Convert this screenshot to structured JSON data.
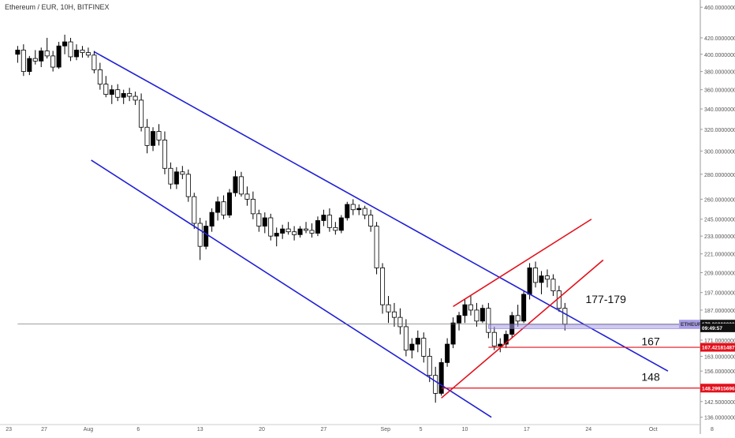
{
  "chart_data": {
    "type": "candlestick",
    "title": "Ethereum / EUR, 10H, BITFINEX",
    "y_axis": {
      "ticks": [
        460,
        420,
        400,
        380,
        360,
        340,
        320,
        300,
        280,
        260,
        245,
        233,
        221,
        209,
        197,
        187,
        171,
        163,
        156,
        148.5,
        142.5,
        136
      ],
      "tick_labels": [
        "460.00000000",
        "420.00000000",
        "400.00000000",
        "380.00000000",
        "360.00000000",
        "340.00000000",
        "320.00000000",
        "300.00000000",
        "280.00000000",
        "260.00000000",
        "245.00000000",
        "233.00000000",
        "221.00000000",
        "209.00000000",
        "197.00000000",
        "187.00000000",
        "171.00000000",
        "163.00000000",
        "156.00000000",
        "148.50000000",
        "142.50000000",
        "136.00000000"
      ],
      "scale": "log",
      "range": [
        134,
        470
      ],
      "position": "right"
    },
    "x_axis": {
      "ticks": [
        "23",
        "27",
        "Aug",
        "6",
        "13",
        "20",
        "27",
        "Sep",
        "5",
        "10",
        "17",
        "24",
        "Oct",
        "8"
      ],
      "range": [
        "Jul 20",
        "Oct 9"
      ]
    },
    "series": [
      {
        "kind": "candles",
        "points": [
          {
            "x": 0,
            "o": 400,
            "h": 410,
            "l": 390,
            "c": 405
          },
          {
            "x": 2,
            "o": 405,
            "h": 412,
            "l": 375,
            "c": 380
          },
          {
            "x": 4,
            "o": 380,
            "h": 398,
            "l": 376,
            "c": 395
          },
          {
            "x": 6,
            "o": 395,
            "h": 405,
            "l": 388,
            "c": 392
          },
          {
            "x": 8,
            "o": 392,
            "h": 408,
            "l": 385,
            "c": 404
          },
          {
            "x": 10,
            "o": 404,
            "h": 420,
            "l": 395,
            "c": 398
          },
          {
            "x": 12,
            "o": 398,
            "h": 404,
            "l": 380,
            "c": 385
          },
          {
            "x": 14,
            "o": 385,
            "h": 415,
            "l": 383,
            "c": 410
          },
          {
            "x": 16,
            "o": 410,
            "h": 424,
            "l": 400,
            "c": 415
          },
          {
            "x": 18,
            "o": 415,
            "h": 420,
            "l": 392,
            "c": 397
          },
          {
            "x": 20,
            "o": 397,
            "h": 412,
            "l": 393,
            "c": 405
          },
          {
            "x": 22,
            "o": 405,
            "h": 410,
            "l": 396,
            "c": 402
          },
          {
            "x": 24,
            "o": 402,
            "h": 408,
            "l": 396,
            "c": 399
          },
          {
            "x": 26,
            "o": 399,
            "h": 404,
            "l": 378,
            "c": 382
          },
          {
            "x": 28,
            "o": 382,
            "h": 390,
            "l": 360,
            "c": 366
          },
          {
            "x": 30,
            "o": 366,
            "h": 375,
            "l": 352,
            "c": 355
          },
          {
            "x": 32,
            "o": 355,
            "h": 365,
            "l": 345,
            "c": 360
          },
          {
            "x": 34,
            "o": 360,
            "h": 366,
            "l": 348,
            "c": 352
          },
          {
            "x": 36,
            "o": 352,
            "h": 360,
            "l": 345,
            "c": 356
          },
          {
            "x": 38,
            "o": 356,
            "h": 362,
            "l": 348,
            "c": 353
          },
          {
            "x": 40,
            "o": 353,
            "h": 358,
            "l": 344,
            "c": 349
          },
          {
            "x": 42,
            "o": 349,
            "h": 356,
            "l": 318,
            "c": 322
          },
          {
            "x": 44,
            "o": 322,
            "h": 330,
            "l": 298,
            "c": 305
          },
          {
            "x": 46,
            "o": 305,
            "h": 322,
            "l": 300,
            "c": 318
          },
          {
            "x": 48,
            "o": 318,
            "h": 325,
            "l": 305,
            "c": 310
          },
          {
            "x": 50,
            "o": 310,
            "h": 318,
            "l": 280,
            "c": 285
          },
          {
            "x": 52,
            "o": 285,
            "h": 290,
            "l": 268,
            "c": 272
          },
          {
            "x": 54,
            "o": 272,
            "h": 286,
            "l": 268,
            "c": 282
          },
          {
            "x": 56,
            "o": 282,
            "h": 287,
            "l": 276,
            "c": 280
          },
          {
            "x": 58,
            "o": 280,
            "h": 284,
            "l": 258,
            "c": 262
          },
          {
            "x": 60,
            "o": 262,
            "h": 265,
            "l": 238,
            "c": 242
          },
          {
            "x": 62,
            "o": 242,
            "h": 246,
            "l": 217,
            "c": 226
          },
          {
            "x": 64,
            "o": 226,
            "h": 244,
            "l": 224,
            "c": 240
          },
          {
            "x": 66,
            "o": 240,
            "h": 253,
            "l": 236,
            "c": 250
          },
          {
            "x": 68,
            "o": 250,
            "h": 262,
            "l": 244,
            "c": 258
          },
          {
            "x": 70,
            "o": 258,
            "h": 263,
            "l": 245,
            "c": 248
          },
          {
            "x": 72,
            "o": 248,
            "h": 268,
            "l": 246,
            "c": 265
          },
          {
            "x": 74,
            "o": 265,
            "h": 283,
            "l": 262,
            "c": 278
          },
          {
            "x": 76,
            "o": 278,
            "h": 282,
            "l": 262,
            "c": 264
          },
          {
            "x": 78,
            "o": 264,
            "h": 270,
            "l": 255,
            "c": 260
          },
          {
            "x": 80,
            "o": 260,
            "h": 266,
            "l": 245,
            "c": 249
          },
          {
            "x": 82,
            "o": 249,
            "h": 252,
            "l": 236,
            "c": 240
          },
          {
            "x": 84,
            "o": 240,
            "h": 250,
            "l": 235,
            "c": 246
          },
          {
            "x": 86,
            "o": 246,
            "h": 249,
            "l": 230,
            "c": 233
          },
          {
            "x": 88,
            "o": 233,
            "h": 239,
            "l": 226,
            "c": 235
          },
          {
            "x": 90,
            "o": 235,
            "h": 241,
            "l": 231,
            "c": 238
          },
          {
            "x": 92,
            "o": 238,
            "h": 243,
            "l": 234,
            "c": 236
          },
          {
            "x": 94,
            "o": 236,
            "h": 240,
            "l": 230,
            "c": 234
          },
          {
            "x": 96,
            "o": 234,
            "h": 240,
            "l": 232,
            "c": 238
          },
          {
            "x": 98,
            "o": 238,
            "h": 243,
            "l": 235,
            "c": 237
          },
          {
            "x": 100,
            "o": 237,
            "h": 242,
            "l": 232,
            "c": 235
          },
          {
            "x": 102,
            "o": 235,
            "h": 247,
            "l": 233,
            "c": 244
          },
          {
            "x": 104,
            "o": 244,
            "h": 252,
            "l": 240,
            "c": 248
          },
          {
            "x": 106,
            "o": 248,
            "h": 253,
            "l": 236,
            "c": 239
          },
          {
            "x": 108,
            "o": 239,
            "h": 243,
            "l": 234,
            "c": 237
          },
          {
            "x": 110,
            "o": 237,
            "h": 248,
            "l": 235,
            "c": 246
          },
          {
            "x": 112,
            "o": 246,
            "h": 258,
            "l": 244,
            "c": 256
          },
          {
            "x": 114,
            "o": 256,
            "h": 260,
            "l": 248,
            "c": 252
          },
          {
            "x": 116,
            "o": 252,
            "h": 256,
            "l": 248,
            "c": 253
          },
          {
            "x": 118,
            "o": 253,
            "h": 255,
            "l": 245,
            "c": 248
          },
          {
            "x": 120,
            "o": 248,
            "h": 252,
            "l": 236,
            "c": 240
          },
          {
            "x": 122,
            "o": 240,
            "h": 243,
            "l": 208,
            "c": 212
          },
          {
            "x": 124,
            "o": 212,
            "h": 215,
            "l": 185,
            "c": 190
          },
          {
            "x": 126,
            "o": 190,
            "h": 195,
            "l": 180,
            "c": 186
          },
          {
            "x": 128,
            "o": 186,
            "h": 191,
            "l": 178,
            "c": 183
          },
          {
            "x": 130,
            "o": 183,
            "h": 188,
            "l": 174,
            "c": 178
          },
          {
            "x": 132,
            "o": 178,
            "h": 182,
            "l": 163,
            "c": 166
          },
          {
            "x": 134,
            "o": 166,
            "h": 172,
            "l": 162,
            "c": 169
          },
          {
            "x": 136,
            "o": 169,
            "h": 176,
            "l": 165,
            "c": 172
          },
          {
            "x": 138,
            "o": 172,
            "h": 175,
            "l": 160,
            "c": 163
          },
          {
            "x": 140,
            "o": 163,
            "h": 167,
            "l": 151,
            "c": 154
          },
          {
            "x": 142,
            "o": 154,
            "h": 158,
            "l": 142,
            "c": 146
          },
          {
            "x": 144,
            "o": 146,
            "h": 162,
            "l": 145,
            "c": 160
          },
          {
            "x": 146,
            "o": 160,
            "h": 172,
            "l": 158,
            "c": 169
          },
          {
            "x": 148,
            "o": 169,
            "h": 183,
            "l": 167,
            "c": 180
          },
          {
            "x": 150,
            "o": 180,
            "h": 186,
            "l": 176,
            "c": 184
          },
          {
            "x": 152,
            "o": 184,
            "h": 193,
            "l": 180,
            "c": 190
          },
          {
            "x": 154,
            "o": 190,
            "h": 195,
            "l": 184,
            "c": 187
          },
          {
            "x": 156,
            "o": 187,
            "h": 191,
            "l": 178,
            "c": 181
          },
          {
            "x": 158,
            "o": 181,
            "h": 190,
            "l": 180,
            "c": 188
          },
          {
            "x": 160,
            "o": 188,
            "h": 191,
            "l": 172,
            "c": 175
          },
          {
            "x": 162,
            "o": 175,
            "h": 178,
            "l": 166,
            "c": 168
          },
          {
            "x": 164,
            "o": 168,
            "h": 172,
            "l": 165,
            "c": 169
          },
          {
            "x": 166,
            "o": 169,
            "h": 176,
            "l": 167,
            "c": 174
          },
          {
            "x": 168,
            "o": 174,
            "h": 186,
            "l": 172,
            "c": 184
          },
          {
            "x": 170,
            "o": 184,
            "h": 190,
            "l": 178,
            "c": 181
          },
          {
            "x": 172,
            "o": 181,
            "h": 198,
            "l": 180,
            "c": 196
          },
          {
            "x": 174,
            "o": 196,
            "h": 215,
            "l": 193,
            "c": 212
          },
          {
            "x": 176,
            "o": 212,
            "h": 216,
            "l": 200,
            "c": 203
          },
          {
            "x": 178,
            "o": 203,
            "h": 210,
            "l": 196,
            "c": 207
          },
          {
            "x": 180,
            "o": 207,
            "h": 211,
            "l": 200,
            "c": 205
          },
          {
            "x": 182,
            "o": 205,
            "h": 208,
            "l": 195,
            "c": 198
          },
          {
            "x": 184,
            "o": 198,
            "h": 201,
            "l": 186,
            "c": 188
          },
          {
            "x": 186,
            "o": 188,
            "h": 191,
            "l": 176,
            "c": 179.36
          }
        ]
      },
      {
        "kind": "line",
        "name": "channel-upper",
        "color": "#1f1fd6",
        "points": [
          {
            "x": 26,
            "y": 403
          },
          {
            "x": 221,
            "y": 156
          }
        ]
      },
      {
        "kind": "line",
        "name": "channel-lower",
        "color": "#1f1fd6",
        "points": [
          {
            "x": 25,
            "y": 292
          },
          {
            "x": 161,
            "y": 136
          }
        ]
      },
      {
        "kind": "line",
        "name": "wedge-lower",
        "color": "#e3101b",
        "points": [
          {
            "x": 144,
            "y": 144
          },
          {
            "x": 199,
            "y": 217
          }
        ]
      },
      {
        "kind": "line",
        "name": "wedge-upper",
        "color": "#e3101b",
        "points": [
          {
            "x": 148,
            "y": 189
          },
          {
            "x": 195,
            "y": 245
          }
        ]
      },
      {
        "kind": "hline",
        "name": "support-167",
        "value": 167.42181487,
        "color": "#e3101b",
        "x_start": 160
      },
      {
        "kind": "hline",
        "name": "support-148",
        "value": 148.29915696,
        "color": "#e3101b",
        "x_start": 144
      },
      {
        "kind": "hline",
        "name": "last-price",
        "value": 179.36,
        "color": "#666666",
        "x_start": 0
      },
      {
        "kind": "zone",
        "name": "zone-177-179",
        "y_range": [
          177,
          179
        ],
        "color": "#a79ce6",
        "x_start": 160
      }
    ],
    "annotations": [
      {
        "text": "177-179",
        "x": 193,
        "y": 191
      },
      {
        "text": "167",
        "x": 212,
        "y": 168.5
      },
      {
        "text": "148",
        "x": 212,
        "y": 151.5
      }
    ],
    "price_labels": [
      {
        "text": "ETHEUR",
        "value": 179.36,
        "background": "#a79ce6",
        "color": "#333333"
      },
      {
        "text": "179.36000000",
        "value": 179.36,
        "background": "#111111",
        "color": "#ffffff"
      },
      {
        "text": "09:49:57",
        "value": 177.4,
        "background": "#111111",
        "color": "#ffffff"
      },
      {
        "text": "167.42181487",
        "value": 167.42181487,
        "background": "#e3101b",
        "color": "#ffffff"
      },
      {
        "text": "148.29915696",
        "value": 148.29915696,
        "background": "#e3101b",
        "color": "#ffffff"
      }
    ],
    "colors": {
      "up": "#000000",
      "down": "#ffffff",
      "wick": "#000000",
      "axis_text": "#555555",
      "axis_line": "#999999"
    },
    "grid": false,
    "legend": "none"
  }
}
